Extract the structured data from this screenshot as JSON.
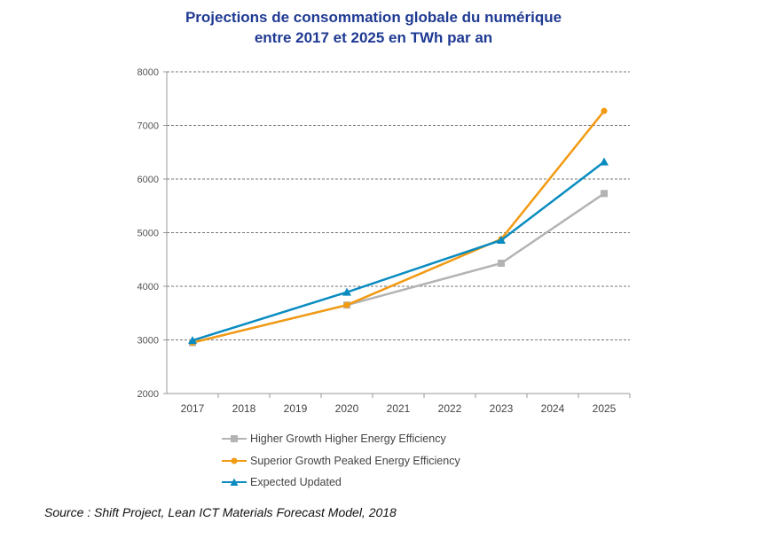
{
  "chart_data": {
    "type": "line",
    "title": "Projections de consommation globale du numérique",
    "subtitle": "entre 2017 et 2025 en TWh par an",
    "xlabel": "",
    "ylabel": "",
    "x": [
      "2017",
      "2018",
      "2019",
      "2020",
      "2021",
      "2022",
      "2023",
      "2024",
      "2025"
    ],
    "ylim": [
      2000,
      8000
    ],
    "yticks": [
      "2000",
      "3000",
      "4000",
      "5000",
      "6000",
      "7000",
      "8000"
    ],
    "grid": "horizontal dashed",
    "legend_position": "bottom",
    "series": [
      {
        "name": "Higher Growth Higher Energy Efficiency",
        "color": "#b3b3b3",
        "marker": "square",
        "points": [
          {
            "x": "2017",
            "y": 2950
          },
          {
            "x": "2020",
            "y": 3650
          },
          {
            "x": "2023",
            "y": 4430
          },
          {
            "x": "2025",
            "y": 5730
          }
        ]
      },
      {
        "name": "Superior Growth Peaked Energy Efficiency",
        "color": "#f29a12",
        "marker": "circle",
        "points": [
          {
            "x": "2017",
            "y": 2950
          },
          {
            "x": "2020",
            "y": 3650
          },
          {
            "x": "2023",
            "y": 4880
          },
          {
            "x": "2025",
            "y": 7270
          }
        ]
      },
      {
        "name": "Expected Updated",
        "color": "#0a8cc0",
        "marker": "triangle",
        "points": [
          {
            "x": "2017",
            "y": 2990
          },
          {
            "x": "2020",
            "y": 3890
          },
          {
            "x": "2023",
            "y": 4860
          },
          {
            "x": "2025",
            "y": 6320
          }
        ]
      }
    ]
  },
  "source": "Source : Shift Project, Lean ICT Materials Forecast Model, 2018"
}
